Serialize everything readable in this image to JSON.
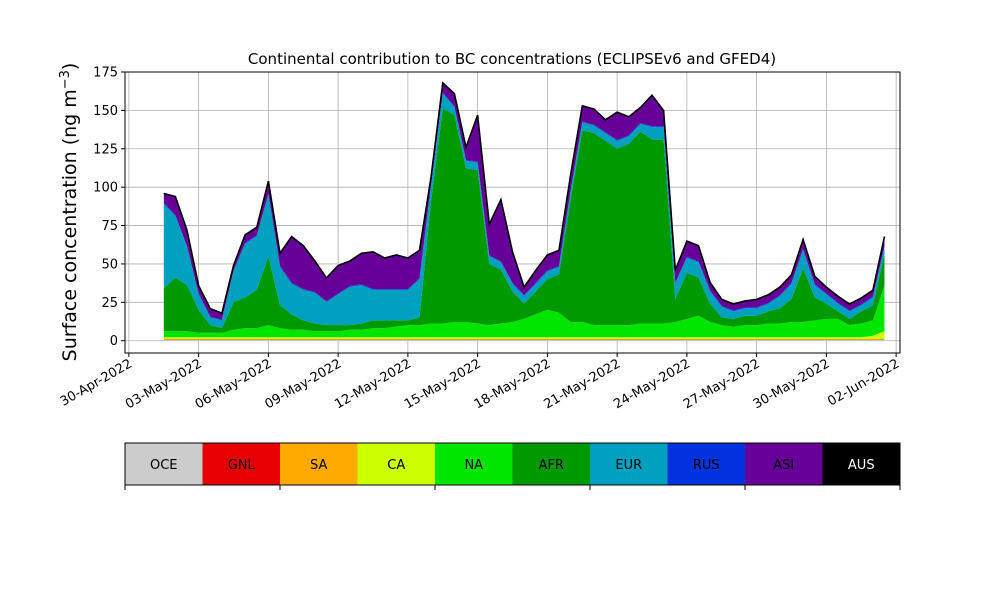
{
  "chart_data": {
    "type": "area",
    "stacked": true,
    "title": "Continental contribution to BC concentrations (ECLIPSEv6 and GFED4)",
    "ylabel_main": "Surface concentration (ng m",
    "ylabel_sup": "−3",
    "ylabel_close": ")",
    "ylim": [
      -8,
      175
    ],
    "yticks": [
      0,
      25,
      50,
      75,
      100,
      125,
      150,
      175
    ],
    "x_start": "2022-04-29T20:00",
    "x_end": "2022-06-02T04:00",
    "xticks": [
      {
        "date": "2022-04-30",
        "label": "30-Apr-2022"
      },
      {
        "date": "2022-05-03",
        "label": "03-May-2022"
      },
      {
        "date": "2022-05-06",
        "label": "06-May-2022"
      },
      {
        "date": "2022-05-09",
        "label": "09-May-2022"
      },
      {
        "date": "2022-05-12",
        "label": "12-May-2022"
      },
      {
        "date": "2022-05-15",
        "label": "15-May-2022"
      },
      {
        "date": "2022-05-18",
        "label": "18-May-2022"
      },
      {
        "date": "2022-05-21",
        "label": "21-May-2022"
      },
      {
        "date": "2022-05-24",
        "label": "24-May-2022"
      },
      {
        "date": "2022-05-27",
        "label": "27-May-2022"
      },
      {
        "date": "2022-05-30",
        "label": "30-May-2022"
      },
      {
        "date": "2022-06-02",
        "label": "02-Jun-2022"
      }
    ],
    "grid": true,
    "x": [
      "2022-05-01T12:00",
      "2022-05-02T00:00",
      "2022-05-02T12:00",
      "2022-05-03T00:00",
      "2022-05-03T12:00",
      "2022-05-04T00:00",
      "2022-05-04T12:00",
      "2022-05-05T00:00",
      "2022-05-05T12:00",
      "2022-05-06T00:00",
      "2022-05-06T12:00",
      "2022-05-07T00:00",
      "2022-05-07T12:00",
      "2022-05-08T00:00",
      "2022-05-08T12:00",
      "2022-05-09T00:00",
      "2022-05-09T12:00",
      "2022-05-10T00:00",
      "2022-05-10T12:00",
      "2022-05-11T00:00",
      "2022-05-11T12:00",
      "2022-05-12T00:00",
      "2022-05-12T12:00",
      "2022-05-13T00:00",
      "2022-05-13T12:00",
      "2022-05-14T00:00",
      "2022-05-14T12:00",
      "2022-05-15T00:00",
      "2022-05-15T12:00",
      "2022-05-16T00:00",
      "2022-05-16T12:00",
      "2022-05-17T00:00",
      "2022-05-17T12:00",
      "2022-05-18T00:00",
      "2022-05-18T12:00",
      "2022-05-19T00:00",
      "2022-05-19T12:00",
      "2022-05-20T00:00",
      "2022-05-20T12:00",
      "2022-05-21T00:00",
      "2022-05-21T12:00",
      "2022-05-22T00:00",
      "2022-05-22T12:00",
      "2022-05-23T00:00",
      "2022-05-23T12:00",
      "2022-05-24T00:00",
      "2022-05-24T12:00",
      "2022-05-25T00:00",
      "2022-05-25T12:00",
      "2022-05-26T00:00",
      "2022-05-26T12:00",
      "2022-05-27T00:00",
      "2022-05-27T12:00",
      "2022-05-28T00:00",
      "2022-05-28T12:00",
      "2022-05-29T00:00",
      "2022-05-29T12:00",
      "2022-05-30T00:00",
      "2022-05-30T12:00",
      "2022-05-31T00:00",
      "2022-05-31T12:00",
      "2022-06-01T00:00",
      "2022-06-01T12:00"
    ],
    "series": [
      {
        "name": "OCE",
        "color": "#cccccc",
        "values": [
          0.5,
          0.5,
          0.5,
          0.5,
          0.5,
          0.5,
          0.5,
          0.5,
          0.5,
          0.5,
          0.5,
          0.5,
          0.5,
          0.5,
          0.5,
          0.5,
          0.5,
          0.5,
          0.5,
          0.5,
          0.5,
          0.5,
          0.5,
          0.5,
          0.5,
          0.5,
          0.5,
          0.5,
          0.5,
          0.5,
          0.5,
          0.5,
          0.5,
          0.5,
          0.5,
          0.5,
          0.5,
          0.5,
          0.5,
          0.5,
          0.5,
          0.5,
          0.5,
          0.5,
          0.5,
          0.5,
          0.5,
          0.5,
          0.5,
          0.5,
          0.5,
          0.5,
          0.5,
          0.5,
          0.5,
          0.5,
          0.5,
          0.5,
          0.5,
          0.5,
          0.5,
          0.5,
          0.5
        ]
      },
      {
        "name": "GNL",
        "color": "#e60000",
        "values": [
          0.2,
          0.2,
          0.2,
          0.2,
          0.2,
          0.2,
          0.2,
          0.2,
          0.2,
          0.2,
          0.2,
          0.2,
          0.2,
          0.2,
          0.2,
          0.2,
          0.2,
          0.2,
          0.2,
          0.2,
          0.2,
          0.2,
          0.2,
          0.2,
          0.2,
          0.2,
          0.2,
          0.2,
          0.2,
          0.2,
          0.2,
          0.2,
          0.2,
          0.2,
          0.2,
          0.2,
          0.2,
          0.2,
          0.2,
          0.2,
          0.2,
          0.2,
          0.2,
          0.2,
          0.2,
          0.2,
          0.2,
          0.2,
          0.2,
          0.2,
          0.2,
          0.2,
          0.2,
          0.2,
          0.2,
          0.2,
          0.2,
          0.2,
          0.2,
          0.2,
          0.2,
          0.2,
          0.2
        ]
      },
      {
        "name": "SA",
        "color": "#ffaa00",
        "values": [
          0.5,
          0.5,
          0.5,
          0.5,
          0.5,
          0.5,
          0.5,
          0.5,
          0.5,
          0.5,
          0.5,
          0.5,
          0.5,
          0.5,
          0.5,
          0.5,
          0.5,
          0.5,
          0.5,
          0.5,
          0.5,
          0.5,
          0.5,
          0.5,
          0.5,
          0.5,
          0.5,
          0.5,
          0.5,
          0.5,
          0.5,
          0.5,
          0.5,
          0.5,
          0.5,
          0.5,
          0.5,
          0.5,
          0.5,
          0.5,
          0.5,
          0.5,
          0.5,
          0.5,
          0.5,
          0.5,
          0.5,
          0.5,
          0.5,
          0.5,
          0.5,
          0.5,
          0.5,
          0.5,
          0.5,
          0.5,
          0.5,
          0.5,
          0.5,
          0.5,
          0.5,
          0.5,
          0.5
        ]
      },
      {
        "name": "CA",
        "color": "#ccff00",
        "values": [
          1,
          1,
          1,
          1,
          1,
          1,
          1,
          1,
          1,
          1,
          1,
          1,
          1,
          1,
          1,
          1,
          1,
          1,
          1,
          1,
          1,
          1,
          1,
          1,
          1,
          1,
          1,
          1,
          1,
          1,
          1,
          1,
          1,
          1,
          1,
          1,
          1,
          1,
          1,
          1,
          1,
          1,
          1,
          1,
          1,
          1,
          1,
          1,
          1,
          1,
          1,
          1,
          1,
          1,
          1,
          1,
          1,
          1,
          1,
          1,
          1,
          2,
          5
        ]
      },
      {
        "name": "NA",
        "color": "#00e600",
        "values": [
          4,
          4,
          4,
          3,
          3,
          3,
          5,
          6,
          6,
          8,
          6,
          5,
          5,
          4,
          4,
          4,
          5,
          5,
          6,
          6,
          7,
          8,
          8,
          9,
          9,
          10,
          10,
          9,
          8,
          9,
          10,
          12,
          15,
          18,
          16,
          10,
          10,
          8,
          8,
          8,
          8,
          9,
          9,
          9,
          10,
          12,
          14,
          10,
          8,
          7,
          8,
          8,
          9,
          9,
          10,
          10,
          11,
          12,
          12,
          8,
          9,
          10,
          30
        ]
      },
      {
        "name": "AFR",
        "color": "#009900",
        "values": [
          28,
          35,
          30,
          15,
          5,
          3,
          18,
          20,
          25,
          45,
          15,
          10,
          6,
          5,
          4,
          4,
          3,
          4,
          5,
          5,
          4,
          3,
          5,
          80,
          140,
          135,
          100,
          100,
          40,
          35,
          20,
          10,
          15,
          20,
          25,
          80,
          125,
          125,
          120,
          115,
          118,
          125,
          120,
          120,
          15,
          30,
          25,
          12,
          5,
          5,
          6,
          6,
          8,
          10,
          15,
          35,
          15,
          10,
          5,
          4,
          8,
          10,
          20
        ]
      },
      {
        "name": "EUR",
        "color": "#00a0c0",
        "values": [
          55,
          40,
          25,
          10,
          5,
          5,
          20,
          35,
          35,
          40,
          25,
          20,
          20,
          20,
          15,
          20,
          25,
          25,
          20,
          20,
          20,
          20,
          25,
          10,
          10,
          5,
          5,
          5,
          5,
          5,
          5,
          5,
          5,
          5,
          5,
          5,
          5,
          5,
          5,
          5,
          5,
          5,
          8,
          8,
          10,
          10,
          10,
          8,
          7,
          5,
          5,
          5,
          5,
          8,
          10,
          12,
          8,
          6,
          5,
          5,
          4,
          5,
          5
        ]
      },
      {
        "name": "RUS",
        "color": "#0033dd",
        "values": [
          0.5,
          0.5,
          0.5,
          0.5,
          0.5,
          0.5,
          0.5,
          0.5,
          0.5,
          0.5,
          0.5,
          0.5,
          0.5,
          0.5,
          0.5,
          0.5,
          0.5,
          0.5,
          0.5,
          0.5,
          0.5,
          0.5,
          0.5,
          0.5,
          0.5,
          0.5,
          0.5,
          0.5,
          0.5,
          0.5,
          0.5,
          0.5,
          0.5,
          0.5,
          0.5,
          0.5,
          0.5,
          0.5,
          0.5,
          0.5,
          0.5,
          0.5,
          0.5,
          0.5,
          0.5,
          0.5,
          0.5,
          0.5,
          0.5,
          0.5,
          0.5,
          0.5,
          0.5,
          0.5,
          0.5,
          0.5,
          0.5,
          0.5,
          0.5,
          0.5,
          0.5,
          0.5,
          0.5
        ]
      },
      {
        "name": "ASI",
        "color": "#660099",
        "values": [
          6,
          12,
          10,
          5,
          5,
          4,
          3,
          5,
          5,
          8,
          8,
          30,
          28,
          20,
          15,
          18,
          16,
          20,
          24,
          20,
          22,
          20,
          18,
          5,
          6,
          8,
          8,
          30,
          20,
          40,
          20,
          5,
          8,
          10,
          10,
          10,
          10,
          10,
          8,
          18,
          12,
          10,
          20,
          10,
          8,
          10,
          10,
          5,
          4,
          4,
          4,
          5,
          5,
          5,
          5,
          6,
          5,
          4,
          4,
          4,
          4,
          4,
          6
        ]
      },
      {
        "name": "AUS",
        "color": "#000000",
        "values": [
          0.2,
          0.2,
          0.2,
          0.2,
          0.2,
          0.2,
          0.2,
          0.2,
          0.2,
          0.2,
          0.2,
          0.2,
          0.2,
          0.2,
          0.2,
          0.2,
          0.2,
          0.2,
          0.2,
          0.2,
          0.2,
          0.2,
          0.2,
          0.2,
          0.2,
          0.2,
          0.2,
          0.2,
          0.2,
          0.2,
          0.2,
          0.2,
          0.2,
          0.2,
          0.2,
          0.2,
          0.2,
          0.2,
          0.2,
          0.2,
          0.2,
          0.2,
          0.2,
          0.2,
          0.2,
          0.2,
          0.2,
          0.2,
          0.2,
          0.2,
          0.2,
          0.2,
          0.2,
          0.2,
          0.2,
          0.2,
          0.2,
          0.2,
          0.2,
          0.2,
          0.2,
          0.2,
          0.2
        ]
      }
    ],
    "legend": {
      "placement": "below",
      "items": [
        {
          "label": "OCE",
          "color": "#cccccc",
          "text_color": "#000000"
        },
        {
          "label": "GNL",
          "color": "#e60000",
          "text_color": "#000000"
        },
        {
          "label": "SA",
          "color": "#ffaa00",
          "text_color": "#000000"
        },
        {
          "label": "CA",
          "color": "#ccff00",
          "text_color": "#000000"
        },
        {
          "label": "NA",
          "color": "#00e600",
          "text_color": "#000000"
        },
        {
          "label": "AFR",
          "color": "#009900",
          "text_color": "#000000"
        },
        {
          "label": "EUR",
          "color": "#00a0c0",
          "text_color": "#000000"
        },
        {
          "label": "RUS",
          "color": "#0033dd",
          "text_color": "#000000"
        },
        {
          "label": "ASI",
          "color": "#660099",
          "text_color": "#000000"
        },
        {
          "label": "AUS",
          "color": "#000000",
          "text_color": "#ffffff"
        }
      ]
    }
  }
}
